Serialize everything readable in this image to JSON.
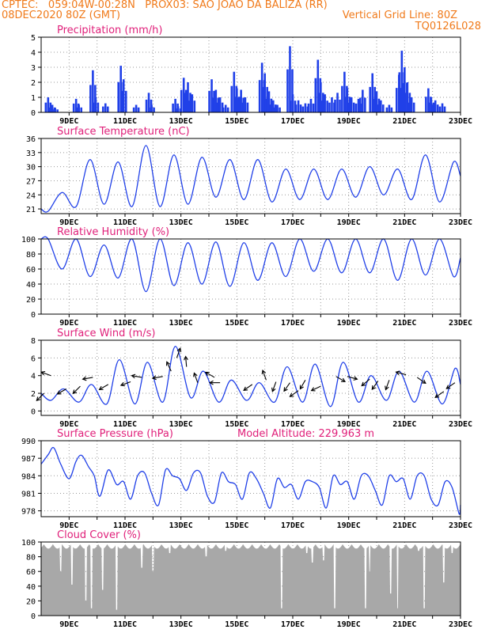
{
  "header": {
    "line1": "CPTEC:   059:04W-00:28N   PROX03: SAO JOAO DA BALIZA (RR)",
    "date": "08DEC2020 80Z (GMT)",
    "grid_line": "Vertical Grid Line: 80Z",
    "code": "TQ0126L028"
  },
  "colors": {
    "header": "#f07a1a",
    "title": "#e0207a",
    "series": "#2040e8",
    "cloud": "#a8a8a8",
    "arrow": "#000000"
  },
  "chart_data": [
    {
      "type": "bar",
      "title": "Precipitation (mm/h)",
      "xlabel": "",
      "ylabel": "",
      "ylim": [
        0,
        5
      ],
      "yticks": [
        0,
        1,
        2,
        3,
        4,
        5
      ],
      "xlim_days": [
        8,
        23
      ],
      "x_tick_labels": [
        "9DEC",
        "11DEC",
        "13DEC",
        "15DEC",
        "17DEC",
        "19DEC",
        "21DEC",
        "23DEC"
      ],
      "grid": true,
      "events": [
        {
          "day": 8.25,
          "value": 1.0
        },
        {
          "day": 8.4,
          "value": 0.5
        },
        {
          "day": 8.5,
          "value": 0.3
        },
        {
          "day": 9.25,
          "value": 0.9
        },
        {
          "day": 9.35,
          "value": 0.5
        },
        {
          "day": 9.85,
          "value": 2.8
        },
        {
          "day": 9.95,
          "value": 1.0
        },
        {
          "day": 10.3,
          "value": 0.6
        },
        {
          "day": 10.85,
          "value": 3.1
        },
        {
          "day": 10.95,
          "value": 2.2
        },
        {
          "day": 11.4,
          "value": 0.5
        },
        {
          "day": 11.85,
          "value": 1.3
        },
        {
          "day": 11.95,
          "value": 0.5
        },
        {
          "day": 12.8,
          "value": 0.9
        },
        {
          "day": 12.9,
          "value": 0.4
        },
        {
          "day": 13.1,
          "value": 2.3
        },
        {
          "day": 13.25,
          "value": 2.0
        },
        {
          "day": 13.4,
          "value": 1.2
        },
        {
          "day": 14.1,
          "value": 2.2
        },
        {
          "day": 14.25,
          "value": 1.5
        },
        {
          "day": 14.4,
          "value": 1.0
        },
        {
          "day": 14.6,
          "value": 0.5
        },
        {
          "day": 14.9,
          "value": 2.7
        },
        {
          "day": 15.0,
          "value": 1.6
        },
        {
          "day": 15.15,
          "value": 1.5
        },
        {
          "day": 15.3,
          "value": 1.0
        },
        {
          "day": 15.9,
          "value": 3.3
        },
        {
          "day": 16.0,
          "value": 2.6
        },
        {
          "day": 16.15,
          "value": 1.4
        },
        {
          "day": 16.3,
          "value": 0.8
        },
        {
          "day": 16.45,
          "value": 0.5
        },
        {
          "day": 16.9,
          "value": 4.4
        },
        {
          "day": 17.0,
          "value": 1.2
        },
        {
          "day": 17.2,
          "value": 0.8
        },
        {
          "day": 17.45,
          "value": 0.6
        },
        {
          "day": 17.65,
          "value": 0.9
        },
        {
          "day": 17.9,
          "value": 3.5
        },
        {
          "day": 18.0,
          "value": 2.0
        },
        {
          "day": 18.15,
          "value": 1.2
        },
        {
          "day": 18.4,
          "value": 1.0
        },
        {
          "day": 18.6,
          "value": 1.3
        },
        {
          "day": 18.85,
          "value": 2.7
        },
        {
          "day": 18.95,
          "value": 1.6
        },
        {
          "day": 19.1,
          "value": 1.0
        },
        {
          "day": 19.35,
          "value": 0.9
        },
        {
          "day": 19.5,
          "value": 1.5
        },
        {
          "day": 19.85,
          "value": 2.6
        },
        {
          "day": 20.0,
          "value": 1.4
        },
        {
          "day": 20.15,
          "value": 0.8
        },
        {
          "day": 20.45,
          "value": 0.5
        },
        {
          "day": 20.8,
          "value": 2.5
        },
        {
          "day": 20.9,
          "value": 4.1
        },
        {
          "day": 21.0,
          "value": 3.0
        },
        {
          "day": 21.1,
          "value": 2.0
        },
        {
          "day": 21.25,
          "value": 1.0
        },
        {
          "day": 21.85,
          "value": 1.6
        },
        {
          "day": 21.95,
          "value": 1.0
        },
        {
          "day": 22.1,
          "value": 0.8
        },
        {
          "day": 22.35,
          "value": 0.6
        }
      ]
    },
    {
      "type": "line",
      "title": "Surface Temperature (nC)",
      "xlabel": "",
      "ylabel": "",
      "ylim": [
        20,
        36
      ],
      "yticks": [
        21,
        24,
        27,
        30,
        33,
        36
      ],
      "xlim_days": [
        8,
        23
      ],
      "x_tick_labels": [
        "9DEC",
        "11DEC",
        "13DEC",
        "15DEC",
        "17DEC",
        "19DEC",
        "21DEC",
        "23DEC"
      ],
      "grid": true,
      "diurnal": {
        "max_hour": 0.75,
        "min_hour": 0.25,
        "maxima": [
          24.5,
          31.5,
          31.0,
          34.5,
          32.5,
          32.0,
          31.5,
          31.5,
          29.5,
          29.5,
          29.5,
          30.0,
          29.5,
          32.5,
          31.0,
          31.5
        ],
        "minima": [
          20.5,
          21.5,
          22.0,
          21.5,
          21.5,
          22.0,
          23.5,
          23.0,
          22.5,
          23.0,
          23.0,
          23.5,
          24.0,
          23.0,
          22.5,
          23.0
        ],
        "start": 21.0,
        "end": 28.0
      }
    },
    {
      "type": "line",
      "title": "Relative Humidity (%)",
      "xlabel": "",
      "ylabel": "",
      "ylim": [
        0,
        100
      ],
      "yticks": [
        0,
        20,
        40,
        60,
        80,
        100
      ],
      "xlim_days": [
        8,
        23
      ],
      "x_tick_labels": [
        "9DEC",
        "11DEC",
        "13DEC",
        "15DEC",
        "17DEC",
        "19DEC",
        "21DEC",
        "23DEC"
      ],
      "grid": true,
      "diurnal": {
        "max_hour": 0.25,
        "min_hour": 0.75,
        "maxima": [
          100,
          100,
          92,
          100,
          100,
          95,
          96,
          95,
          95,
          100,
          100,
          100,
          100,
          100,
          100,
          88
        ],
        "minima": [
          60,
          50,
          48,
          30,
          38,
          40,
          37,
          45,
          50,
          57,
          55,
          55,
          45,
          52,
          50,
          42
        ],
        "start": 100,
        "end": 75
      }
    },
    {
      "type": "line",
      "title": "Surface Wind (m/s)",
      "xlabel": "",
      "ylabel": "",
      "ylim": [
        -0.5,
        8
      ],
      "yticks": [
        0,
        2,
        4,
        6,
        8
      ],
      "xlim_days": [
        8,
        23
      ],
      "x_tick_labels": [
        "9DEC",
        "11DEC",
        "13DEC",
        "15DEC",
        "17DEC",
        "19DEC",
        "21DEC",
        "23DEC"
      ],
      "grid": true,
      "diurnal": {
        "max_hour": 0.8,
        "min_hour": 0.35,
        "maxima": [
          2.5,
          3.0,
          5.8,
          5.5,
          7.3,
          4.5,
          3.5,
          3.2,
          5.0,
          5.3,
          5.5,
          4.0,
          4.5,
          4.5,
          4.8,
          4.0
        ],
        "minima": [
          1.2,
          1.0,
          0.8,
          0.8,
          1.0,
          1.5,
          1.0,
          1.2,
          1.0,
          1.0,
          0.5,
          1.0,
          1.2,
          1.0,
          0.8,
          1.2
        ],
        "start": 2.0,
        "end": 3.0
      },
      "wind_arrows": [
        {
          "day": 8.1,
          "speed": 2.0,
          "dir_deg": 225
        },
        {
          "day": 8.35,
          "speed": 4.0,
          "dir_deg": 160
        },
        {
          "day": 8.9,
          "speed": 2.5,
          "dir_deg": 210
        },
        {
          "day": 9.4,
          "speed": 2.8,
          "dir_deg": 225
        },
        {
          "day": 9.85,
          "speed": 3.8,
          "dir_deg": 190
        },
        {
          "day": 10.4,
          "speed": 3.0,
          "dir_deg": 210
        },
        {
          "day": 11.2,
          "speed": 3.3,
          "dir_deg": 200
        },
        {
          "day": 11.6,
          "speed": 3.8,
          "dir_deg": 170
        },
        {
          "day": 12.35,
          "speed": 3.9,
          "dir_deg": 190
        },
        {
          "day": 12.65,
          "speed": 4.5,
          "dir_deg": 115
        },
        {
          "day": 12.85,
          "speed": 6.0,
          "dir_deg": 70
        },
        {
          "day": 13.2,
          "speed": 5.0,
          "dir_deg": 95
        },
        {
          "day": 13.6,
          "speed": 3.2,
          "dir_deg": 110
        },
        {
          "day": 14.2,
          "speed": 3.8,
          "dir_deg": 150
        },
        {
          "day": 14.4,
          "speed": 3.2,
          "dir_deg": 180
        },
        {
          "day": 15.55,
          "speed": 3.0,
          "dir_deg": 215
        },
        {
          "day": 16.05,
          "speed": 3.5,
          "dir_deg": 110
        },
        {
          "day": 16.4,
          "speed": 3.3,
          "dir_deg": 250
        },
        {
          "day": 16.9,
          "speed": 3.2,
          "dir_deg": 235
        },
        {
          "day": 17.2,
          "speed": 2.3,
          "dir_deg": 215
        },
        {
          "day": 17.45,
          "speed": 3.5,
          "dir_deg": 240
        },
        {
          "day": 18.0,
          "speed": 2.8,
          "dir_deg": 205
        },
        {
          "day": 18.55,
          "speed": 3.9,
          "dir_deg": 330
        },
        {
          "day": 18.95,
          "speed": 3.9,
          "dir_deg": 345
        },
        {
          "day": 19.75,
          "speed": 3.6,
          "dir_deg": 220
        },
        {
          "day": 20.05,
          "speed": 3.4,
          "dir_deg": 235
        },
        {
          "day": 20.45,
          "speed": 3.5,
          "dir_deg": 250
        },
        {
          "day": 21.05,
          "speed": 4.1,
          "dir_deg": 165
        },
        {
          "day": 21.45,
          "speed": 3.8,
          "dir_deg": 325
        },
        {
          "day": 22.4,
          "speed": 2.2,
          "dir_deg": 215
        },
        {
          "day": 22.8,
          "speed": 3.2,
          "dir_deg": 215
        }
      ]
    },
    {
      "type": "line",
      "title": "Surface Pressure (hPa)",
      "subtitle": "Model Altitude: 229.963 m",
      "xlabel": "",
      "ylabel": "",
      "ylim": [
        977,
        990
      ],
      "yticks": [
        978,
        981,
        984,
        987,
        990
      ],
      "xlim_days": [
        8,
        23
      ],
      "x_tick_labels": [
        "9DEC",
        "11DEC",
        "13DEC",
        "15DEC",
        "17DEC",
        "19DEC",
        "21DEC",
        "23DEC"
      ],
      "grid": true,
      "semidiurnal": {
        "points": [
          [
            8.0,
            986.0
          ],
          [
            8.25,
            987.6
          ],
          [
            8.45,
            988.8
          ],
          [
            8.7,
            986.0
          ],
          [
            9.0,
            983.5
          ],
          [
            9.25,
            986.5
          ],
          [
            9.45,
            987.5
          ],
          [
            9.7,
            985.5
          ],
          [
            9.9,
            984.0
          ],
          [
            10.1,
            980.5
          ],
          [
            10.4,
            985.0
          ],
          [
            10.7,
            982.5
          ],
          [
            10.95,
            983.0
          ],
          [
            11.2,
            980.0
          ],
          [
            11.45,
            984.0
          ],
          [
            11.7,
            984.5
          ],
          [
            11.95,
            981.0
          ],
          [
            12.2,
            979.0
          ],
          [
            12.45,
            985.0
          ],
          [
            12.7,
            984.0
          ],
          [
            12.95,
            983.5
          ],
          [
            13.2,
            981.5
          ],
          [
            13.45,
            984.5
          ],
          [
            13.7,
            984.5
          ],
          [
            13.95,
            980.5
          ],
          [
            14.2,
            979.5
          ],
          [
            14.45,
            984.5
          ],
          [
            14.7,
            983.0
          ],
          [
            14.95,
            982.5
          ],
          [
            15.2,
            980.0
          ],
          [
            15.45,
            984.5
          ],
          [
            15.7,
            983.5
          ],
          [
            15.95,
            981.0
          ],
          [
            16.2,
            978.5
          ],
          [
            16.45,
            983.5
          ],
          [
            16.7,
            982.0
          ],
          [
            16.95,
            982.5
          ],
          [
            17.2,
            980.0
          ],
          [
            17.45,
            983.0
          ],
          [
            17.7,
            983.0
          ],
          [
            17.95,
            982.0
          ],
          [
            18.2,
            978.5
          ],
          [
            18.45,
            984.0
          ],
          [
            18.7,
            982.5
          ],
          [
            18.95,
            983.0
          ],
          [
            19.2,
            980.0
          ],
          [
            19.45,
            984.0
          ],
          [
            19.7,
            984.0
          ],
          [
            19.95,
            981.5
          ],
          [
            20.2,
            979.0
          ],
          [
            20.45,
            984.0
          ],
          [
            20.7,
            983.0
          ],
          [
            20.95,
            983.5
          ],
          [
            21.2,
            980.0
          ],
          [
            21.45,
            984.0
          ],
          [
            21.7,
            984.0
          ],
          [
            21.95,
            980.0
          ],
          [
            22.2,
            979.0
          ],
          [
            22.45,
            983.0
          ],
          [
            22.7,
            982.0
          ],
          [
            22.95,
            977.5
          ],
          [
            23.0,
            979.0
          ]
        ]
      }
    },
    {
      "type": "bar",
      "title": "Cloud Cover (%)",
      "xlabel": "",
      "ylabel": "",
      "ylim": [
        0,
        100
      ],
      "yticks": [
        0,
        20,
        40,
        60,
        80,
        100
      ],
      "xlim_days": [
        8,
        23
      ],
      "x_tick_labels": [
        "9DEC",
        "11DEC",
        "13DEC",
        "15DEC",
        "17DEC",
        "19DEC",
        "21DEC",
        "23DEC"
      ],
      "grid": true,
      "fill": {
        "baseline": 97,
        "dips": [
          {
            "day": 8.7,
            "value": 60
          },
          {
            "day": 9.1,
            "value": 42
          },
          {
            "day": 9.6,
            "value": 20
          },
          {
            "day": 9.8,
            "value": 10
          },
          {
            "day": 10.2,
            "value": 35
          },
          {
            "day": 10.7,
            "value": 8
          },
          {
            "day": 11.6,
            "value": 65
          },
          {
            "day": 12.0,
            "value": 60
          },
          {
            "day": 12.6,
            "value": 85
          },
          {
            "day": 13.9,
            "value": 80
          },
          {
            "day": 14.6,
            "value": 88
          },
          {
            "day": 16.6,
            "value": 10
          },
          {
            "day": 17.5,
            "value": 85
          },
          {
            "day": 17.7,
            "value": 72
          },
          {
            "day": 18.1,
            "value": 75
          },
          {
            "day": 18.5,
            "value": 10
          },
          {
            "day": 19.6,
            "value": 10
          },
          {
            "day": 19.75,
            "value": 60
          },
          {
            "day": 20.5,
            "value": 30
          },
          {
            "day": 20.75,
            "value": 10
          },
          {
            "day": 21.5,
            "value": 88
          },
          {
            "day": 21.7,
            "value": 10
          },
          {
            "day": 22.4,
            "value": 45
          },
          {
            "day": 22.7,
            "value": 85
          }
        ]
      }
    }
  ]
}
